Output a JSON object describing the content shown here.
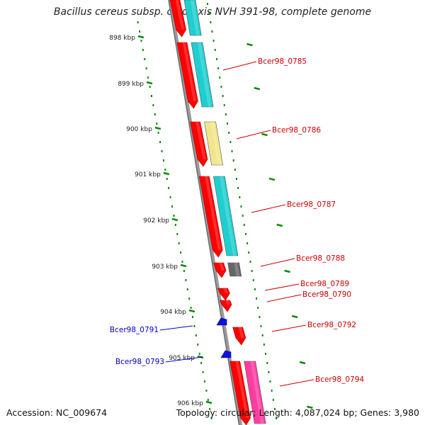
{
  "title": "Bacillus cereus subsp. cytotoxis NVH 391-98, complete genome",
  "footer": {
    "accession": "Accession: NC_009674",
    "summary": "Topology: circular; Length: 4,087,024 bp; Genes: 3,980"
  },
  "colors": {
    "backbone": "#808080",
    "tick": "#0a8a0a",
    "cds_forward": "#ff0000",
    "cds_reverse_label": "#0000cc",
    "label_forward": "#cc0000",
    "cog_cyan": "#1ecfd0",
    "cog_yellow": "#f2e68c",
    "cog_gray": "#666666",
    "cog_pink": "#ff3ca0"
  },
  "ruler": {
    "unit": "kbp",
    "ticks": [
      "898 kbp",
      "899 kbp",
      "900 kbp",
      "901 kbp",
      "902 kbp",
      "903 kbp",
      "904 kbp",
      "905 kbp",
      "906 kbp"
    ]
  },
  "genes": [
    {
      "label": "Bcer98_0785",
      "strand": "+",
      "cog": "cyan"
    },
    {
      "label": "Bcer98_0786",
      "strand": "+",
      "cog": "yellow"
    },
    {
      "label": "Bcer98_0787",
      "strand": "+",
      "cog": "cyan"
    },
    {
      "label": "Bcer98_0788",
      "strand": "+",
      "cog": "gray"
    },
    {
      "label": "Bcer98_0789",
      "strand": "+",
      "cog": "none"
    },
    {
      "label": "Bcer98_0790",
      "strand": "+",
      "cog": "none"
    },
    {
      "label": "Bcer98_0791",
      "strand": "-",
      "cog": "none"
    },
    {
      "label": "Bcer98_0792",
      "strand": "+",
      "cog": "none"
    },
    {
      "label": "Bcer98_0793",
      "strand": "-",
      "cog": "none"
    },
    {
      "label": "Bcer98_0794",
      "strand": "+",
      "cog": "pink"
    }
  ]
}
